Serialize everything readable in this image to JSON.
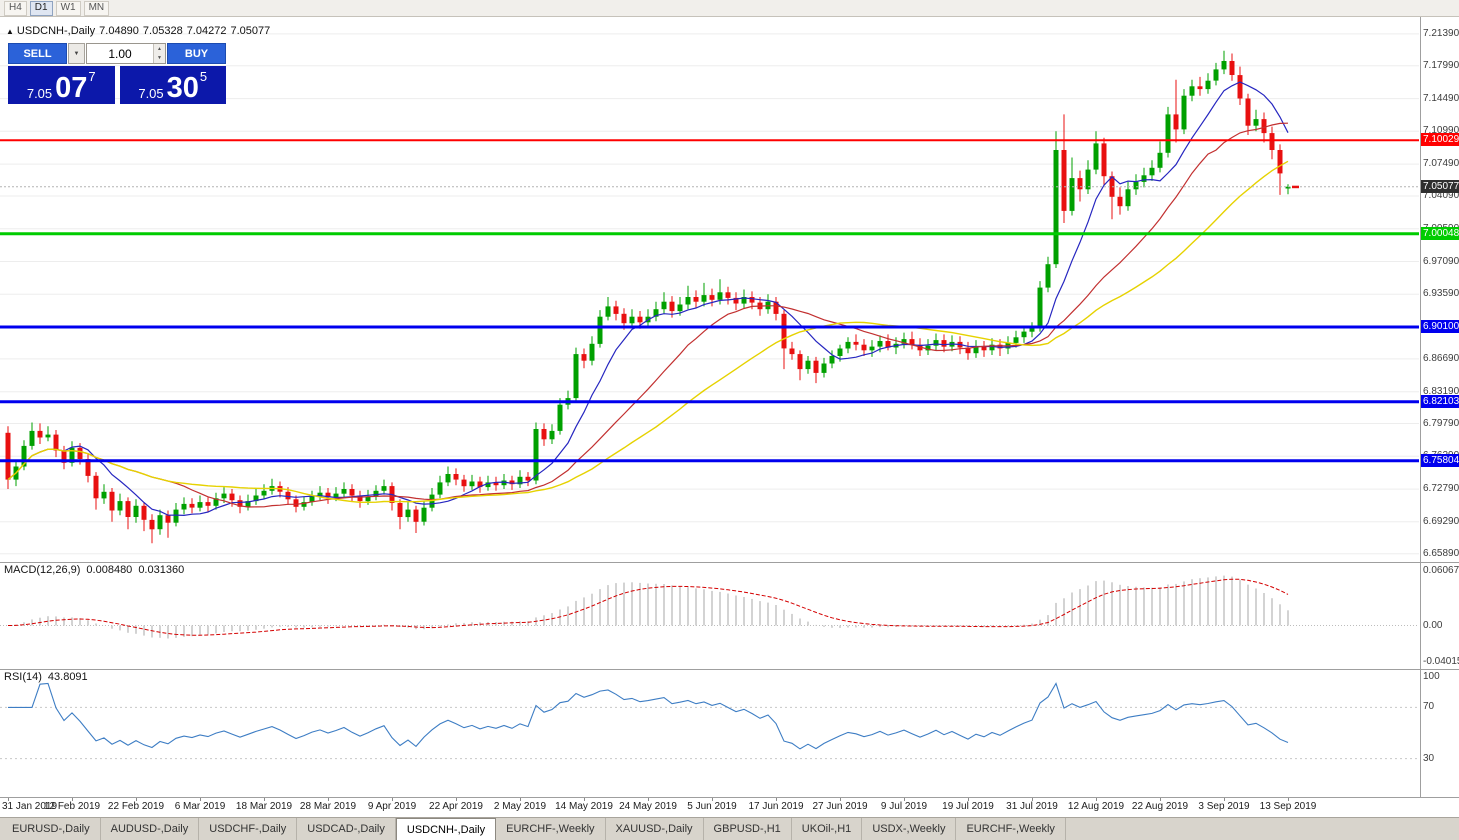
{
  "toolbar": {
    "timeframes": [
      {
        "label": "H4",
        "active": false
      },
      {
        "label": "D1",
        "active": true
      },
      {
        "label": "W1",
        "active": false
      },
      {
        "label": "MN",
        "active": false
      }
    ]
  },
  "header": {
    "symbol": "USDCNH-,Daily",
    "open": "7.04890",
    "high": "7.05328",
    "low": "7.04272",
    "close": "7.05077"
  },
  "trade": {
    "sell_label": "SELL",
    "buy_label": "BUY",
    "volume": "1.00",
    "sell_price": {
      "small": "7.05",
      "big": "07",
      "sup": "7"
    },
    "buy_price": {
      "small": "7.05",
      "big": "30",
      "sup": "5"
    }
  },
  "tabs": {
    "items": [
      "EURUSD-,Daily",
      "AUDUSD-,Daily",
      "USDCHF-,Daily",
      "USDCAD-,Daily",
      "USDCNH-,Daily",
      "EURCHF-,Weekly",
      "XAUUSD-,Daily",
      "GBPUSD-,H1",
      "UKOil-,H1",
      "USDX-,Weekly",
      "EURCHF-,Weekly"
    ],
    "active_index": 4
  },
  "chart_data": {
    "type": "candlestick",
    "symbol": "USDCNH-",
    "timeframe": "Daily",
    "colors": {
      "up": "#00A000",
      "down": "#E81010",
      "grid": "#ededed",
      "ma_fast": "#2626c0",
      "ma_mid": "#c23030",
      "ma_slow": "#e6d200",
      "current_bg": "#2f2f2f",
      "current_line": "#b4b4b4",
      "macd_bar": "#c4c4c4",
      "macd_signal": "#d40000",
      "rsi_line": "#3d7dc4",
      "level_dotted": "#c8c8c8"
    },
    "price_axis": {
      "min": 6.65,
      "max": 7.232,
      "ticks": [
        "7.21390",
        "7.17990",
        "7.14490",
        "7.10990",
        "7.07490",
        "7.04090",
        "7.00590",
        "6.97090",
        "6.93590",
        "6.90090",
        "6.86690",
        "6.83190",
        "6.79790",
        "6.76290",
        "6.72790",
        "6.69290",
        "6.65890"
      ]
    },
    "x_labels": [
      "31 Jan 2019",
      "12 Feb 2019",
      "22 Feb 2019",
      "6 Mar 2019",
      "18 Mar 2019",
      "28 Mar 2019",
      "9 Apr 2019",
      "22 Apr 2019",
      "2 May 2019",
      "14 May 2019",
      "24 May 2019",
      "5 Jun 2019",
      "17 Jun 2019",
      "27 Jun 2019",
      "9 Jul 2019",
      "19 Jul 2019",
      "31 Jul 2019",
      "12 Aug 2019",
      "22 Aug 2019",
      "3 Sep 2019",
      "13 Sep 2019"
    ],
    "moving_averages": [
      {
        "period": 8,
        "color": "#2626c0",
        "width": 1.2
      },
      {
        "period": 20,
        "color": "#c23030",
        "width": 1.2
      },
      {
        "period": 34,
        "color": "#e6d200",
        "width": 1.4
      }
    ],
    "hlines": [
      {
        "value": 7.10029,
        "label": "7.10029",
        "color": "#ff0000",
        "width": 2
      },
      {
        "value": 7.00048,
        "label": "7.00048",
        "color": "#00cc00",
        "width": 3
      },
      {
        "value": 6.901,
        "label": "6.90100",
        "color": "#0000ee",
        "width": 3
      },
      {
        "value": 6.82103,
        "label": "6.82103",
        "color": "#0000ee",
        "width": 3
      },
      {
        "value": 6.75804,
        "label": "6.75804",
        "color": "#0000ee",
        "width": 3
      }
    ],
    "current_price": {
      "value": 7.05077,
      "label": "7.05077"
    },
    "macd": {
      "label": "MACD(12,26,9)",
      "value_main": "0.008480",
      "value_signal": "0.031360",
      "fast": 12,
      "slow": 26,
      "signal": 9,
      "range": [
        -0.0493,
        0.0721
      ],
      "axis_labels": {
        "max": "0.060674",
        "zero": "0.00",
        "min": "-0.040152"
      }
    },
    "rsi": {
      "label": "RSI(14)",
      "value": "43.8091",
      "period": 14,
      "levels": [
        70,
        30
      ],
      "axis_labels": [
        "100",
        "70",
        "30"
      ]
    },
    "candles": [
      [
        6.788,
        6.795,
        6.728,
        6.738
      ],
      [
        6.738,
        6.759,
        6.731,
        6.752
      ],
      [
        6.752,
        6.78,
        6.748,
        6.774
      ],
      [
        6.774,
        6.799,
        6.77,
        6.79
      ],
      [
        6.79,
        6.798,
        6.776,
        6.783
      ],
      [
        6.783,
        6.795,
        6.779,
        6.786
      ],
      [
        6.786,
        6.791,
        6.762,
        6.769
      ],
      [
        6.769,
        6.774,
        6.749,
        6.756
      ],
      [
        6.756,
        6.779,
        6.752,
        6.772
      ],
      [
        6.772,
        6.777,
        6.754,
        6.76
      ],
      [
        6.76,
        6.765,
        6.735,
        6.742
      ],
      [
        6.742,
        6.746,
        6.706,
        6.718
      ],
      [
        6.718,
        6.733,
        6.712,
        6.725
      ],
      [
        6.725,
        6.729,
        6.693,
        6.705
      ],
      [
        6.705,
        6.723,
        6.7,
        6.715
      ],
      [
        6.715,
        6.719,
        6.685,
        6.698
      ],
      [
        6.698,
        6.717,
        6.692,
        6.71
      ],
      [
        6.71,
        6.714,
        6.683,
        6.695
      ],
      [
        6.695,
        6.701,
        6.67,
        6.685
      ],
      [
        6.685,
        6.706,
        6.679,
        6.7
      ],
      [
        6.7,
        6.705,
        6.676,
        6.692
      ],
      [
        6.692,
        6.713,
        6.688,
        6.706
      ],
      [
        6.706,
        6.719,
        6.701,
        6.712
      ],
      [
        6.712,
        6.718,
        6.702,
        6.708
      ],
      [
        6.708,
        6.721,
        6.704,
        6.714
      ],
      [
        6.714,
        6.719,
        6.703,
        6.71
      ],
      [
        6.71,
        6.724,
        6.706,
        6.718
      ],
      [
        6.718,
        6.73,
        6.713,
        6.723
      ],
      [
        6.723,
        6.728,
        6.709,
        6.716
      ],
      [
        6.716,
        6.721,
        6.702,
        6.709
      ],
      [
        6.709,
        6.722,
        6.705,
        6.715
      ],
      [
        6.715,
        6.728,
        6.711,
        6.721
      ],
      [
        6.721,
        6.733,
        6.717,
        6.726
      ],
      [
        6.726,
        6.739,
        6.722,
        6.731
      ],
      [
        6.731,
        6.736,
        6.719,
        6.725
      ],
      [
        6.725,
        6.73,
        6.711,
        6.717
      ],
      [
        6.717,
        6.721,
        6.703,
        6.709
      ],
      [
        6.709,
        6.72,
        6.705,
        6.714
      ],
      [
        6.714,
        6.726,
        6.71,
        6.72
      ],
      [
        6.72,
        6.731,
        6.716,
        6.724
      ],
      [
        6.724,
        6.729,
        6.712,
        6.719
      ],
      [
        6.719,
        6.73,
        6.715,
        6.723
      ],
      [
        6.723,
        6.735,
        6.719,
        6.728
      ],
      [
        6.728,
        6.733,
        6.715,
        6.721
      ],
      [
        6.721,
        6.726,
        6.708,
        6.715
      ],
      [
        6.715,
        6.727,
        6.711,
        6.72
      ],
      [
        6.72,
        6.732,
        6.716,
        6.726
      ],
      [
        6.726,
        6.738,
        6.722,
        6.731
      ],
      [
        6.731,
        6.735,
        6.705,
        6.713
      ],
      [
        6.713,
        6.717,
        6.685,
        6.698
      ],
      [
        6.698,
        6.714,
        6.693,
        6.706
      ],
      [
        6.706,
        6.71,
        6.681,
        6.693
      ],
      [
        6.693,
        6.715,
        6.689,
        6.708
      ],
      [
        6.708,
        6.729,
        6.704,
        6.722
      ],
      [
        6.722,
        6.742,
        6.718,
        6.735
      ],
      [
        6.735,
        6.752,
        6.731,
        6.744
      ],
      [
        6.744,
        6.75,
        6.732,
        6.738
      ],
      [
        6.738,
        6.743,
        6.725,
        6.731
      ],
      [
        6.731,
        6.743,
        6.727,
        6.736
      ],
      [
        6.736,
        6.741,
        6.724,
        6.73
      ],
      [
        6.73,
        6.742,
        6.726,
        6.735
      ],
      [
        6.735,
        6.741,
        6.726,
        6.732
      ],
      [
        6.732,
        6.744,
        6.728,
        6.737
      ],
      [
        6.737,
        6.742,
        6.727,
        6.733
      ],
      [
        6.733,
        6.748,
        6.729,
        6.741
      ],
      [
        6.741,
        6.746,
        6.731,
        6.737
      ],
      [
        6.737,
        6.799,
        6.733,
        6.792
      ],
      [
        6.792,
        6.798,
        6.774,
        6.781
      ],
      [
        6.781,
        6.797,
        6.776,
        6.79
      ],
      [
        6.79,
        6.825,
        6.786,
        6.818
      ],
      [
        6.818,
        6.833,
        6.813,
        6.825
      ],
      [
        6.825,
        6.879,
        6.821,
        6.872
      ],
      [
        6.872,
        6.878,
        6.857,
        6.865
      ],
      [
        6.865,
        6.891,
        6.86,
        6.883
      ],
      [
        6.883,
        6.919,
        6.879,
        6.912
      ],
      [
        6.912,
        6.933,
        6.908,
        6.923
      ],
      [
        6.923,
        6.929,
        6.908,
        6.915
      ],
      [
        6.915,
        6.921,
        6.898,
        6.905
      ],
      [
        6.905,
        6.92,
        6.9,
        6.912
      ],
      [
        6.912,
        6.918,
        6.899,
        6.906
      ],
      [
        6.906,
        6.92,
        6.901,
        6.912
      ],
      [
        6.912,
        6.928,
        6.907,
        6.92
      ],
      [
        6.92,
        6.938,
        6.915,
        6.928
      ],
      [
        6.928,
        6.934,
        6.911,
        6.918
      ],
      [
        6.918,
        6.933,
        6.913,
        6.925
      ],
      [
        6.925,
        6.945,
        6.92,
        6.933
      ],
      [
        6.933,
        6.94,
        6.921,
        6.928
      ],
      [
        6.928,
        6.948,
        6.923,
        6.935
      ],
      [
        6.935,
        6.942,
        6.923,
        6.93
      ],
      [
        6.93,
        6.952,
        6.925,
        6.938
      ],
      [
        6.938,
        6.944,
        6.925,
        6.932
      ],
      [
        6.932,
        6.938,
        6.919,
        6.926
      ],
      [
        6.926,
        6.941,
        6.921,
        6.933
      ],
      [
        6.933,
        6.939,
        6.92,
        6.927
      ],
      [
        6.927,
        6.933,
        6.913,
        6.92
      ],
      [
        6.92,
        6.936,
        6.915,
        6.928
      ],
      [
        6.928,
        6.933,
        6.908,
        6.915
      ],
      [
        6.915,
        6.919,
        6.856,
        6.878
      ],
      [
        6.878,
        6.885,
        6.866,
        6.872
      ],
      [
        6.872,
        6.876,
        6.844,
        6.856
      ],
      [
        6.856,
        6.87,
        6.851,
        6.865
      ],
      [
        6.865,
        6.869,
        6.841,
        6.852
      ],
      [
        6.852,
        6.868,
        6.847,
        6.862
      ],
      [
        6.862,
        6.876,
        6.857,
        6.87
      ],
      [
        6.87,
        6.882,
        6.864,
        6.878
      ],
      [
        6.878,
        6.89,
        6.873,
        6.885
      ],
      [
        6.885,
        6.893,
        6.876,
        6.882
      ],
      [
        6.882,
        6.888,
        6.87,
        6.876
      ],
      [
        6.876,
        6.887,
        6.869,
        6.88
      ],
      [
        6.88,
        6.892,
        6.874,
        6.886
      ],
      [
        6.886,
        6.893,
        6.876,
        6.879
      ],
      [
        6.879,
        6.89,
        6.872,
        6.883
      ],
      [
        6.883,
        6.895,
        6.878,
        6.888
      ],
      [
        6.888,
        6.896,
        6.877,
        6.882
      ],
      [
        6.882,
        6.889,
        6.87,
        6.876
      ],
      [
        6.876,
        6.888,
        6.871,
        6.881
      ],
      [
        6.881,
        6.894,
        6.876,
        6.887
      ],
      [
        6.887,
        6.893,
        6.874,
        6.88
      ],
      [
        6.88,
        6.892,
        6.875,
        6.885
      ],
      [
        6.885,
        6.891,
        6.872,
        6.879
      ],
      [
        6.879,
        6.885,
        6.866,
        6.873
      ],
      [
        6.873,
        6.887,
        6.868,
        6.88
      ],
      [
        6.88,
        6.886,
        6.869,
        6.876
      ],
      [
        6.876,
        6.889,
        6.871,
        6.882
      ],
      [
        6.882,
        6.888,
        6.87,
        6.878
      ],
      [
        6.878,
        6.891,
        6.872,
        6.884
      ],
      [
        6.884,
        6.897,
        6.879,
        6.89
      ],
      [
        6.89,
        6.901,
        6.884,
        6.896
      ],
      [
        6.896,
        6.906,
        6.89,
        6.901
      ],
      [
        6.901,
        6.95,
        6.896,
        6.943
      ],
      [
        6.943,
        6.976,
        6.938,
        6.968
      ],
      [
        6.968,
        7.11,
        6.964,
        7.09
      ],
      [
        7.09,
        7.128,
        7.012,
        7.025
      ],
      [
        7.025,
        7.082,
        7.02,
        7.06
      ],
      [
        7.06,
        7.068,
        7.035,
        7.048
      ],
      [
        7.048,
        7.079,
        7.043,
        7.069
      ],
      [
        7.069,
        7.11,
        7.064,
        7.097
      ],
      [
        7.097,
        7.103,
        7.052,
        7.062
      ],
      [
        7.062,
        7.067,
        7.016,
        7.04
      ],
      [
        7.04,
        7.05,
        7.021,
        7.03
      ],
      [
        7.03,
        7.056,
        7.025,
        7.048
      ],
      [
        7.048,
        7.064,
        7.042,
        7.056
      ],
      [
        7.056,
        7.071,
        7.05,
        7.063
      ],
      [
        7.063,
        7.079,
        7.057,
        7.071
      ],
      [
        7.071,
        7.099,
        7.066,
        7.087
      ],
      [
        7.087,
        7.136,
        7.082,
        7.128
      ],
      [
        7.128,
        7.165,
        7.098,
        7.112
      ],
      [
        7.112,
        7.155,
        7.107,
        7.148
      ],
      [
        7.148,
        7.165,
        7.142,
        7.158
      ],
      [
        7.158,
        7.168,
        7.148,
        7.155
      ],
      [
        7.155,
        7.172,
        7.15,
        7.164
      ],
      [
        7.164,
        7.183,
        7.159,
        7.176
      ],
      [
        7.176,
        7.196,
        7.171,
        7.185
      ],
      [
        7.185,
        7.193,
        7.164,
        7.17
      ],
      [
        7.17,
        7.179,
        7.138,
        7.145
      ],
      [
        7.145,
        7.15,
        7.106,
        7.116
      ],
      [
        7.116,
        7.133,
        7.11,
        7.123
      ],
      [
        7.123,
        7.13,
        7.098,
        7.108
      ],
      [
        7.108,
        7.115,
        7.08,
        7.09
      ],
      [
        7.09,
        7.096,
        7.042,
        7.065
      ],
      [
        7.0489,
        7.0533,
        7.0427,
        7.0508
      ]
    ]
  }
}
